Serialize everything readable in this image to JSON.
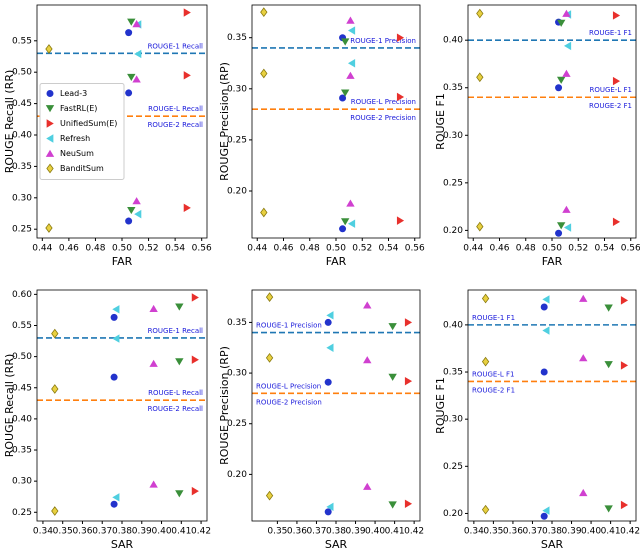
{
  "chart_data": [
    {
      "type": "scatter",
      "xlabel": "FAR",
      "ylabel": "ROUGE Recall (RR)",
      "xlim": [
        0.436,
        0.564
      ],
      "ylim": [
        0.236,
        0.607
      ],
      "xticks": [
        0.44,
        0.46,
        0.48,
        {
          "value": 0.5,
          "label": "0.50"
        },
        0.52,
        0.54,
        0.56
      ],
      "yticks": [
        0.25,
        {
          "value": 0.3,
          "label": "0.30"
        },
        0.35,
        {
          "value": 0.4,
          "label": "0.40"
        },
        0.45,
        {
          "value": 0.5,
          "label": "0.50"
        },
        0.55
      ],
      "legend": "center left",
      "ref_label_side": "right",
      "ref_lines": [
        {
          "value": 0.53,
          "color": "#1f77b4",
          "labels": [
            "ROUGE-1 Recall"
          ]
        },
        {
          "value": 0.43,
          "color": "#ff7f0e",
          "labels": [
            "ROUGE-L Recall",
            "ROUGE-2 Recall"
          ]
        }
      ],
      "series": [
        {
          "name": "Lead-3",
          "color": "#2233cc",
          "marker": "o",
          "x": [
            0.505,
            0.505,
            0.505
          ],
          "values": [
            0.563,
            0.467,
            0.263
          ]
        },
        {
          "name": "FastRL(E)",
          "color": "#3a8f3a",
          "marker": "v",
          "x": [
            0.507,
            0.507,
            0.507
          ],
          "values": [
            0.58,
            0.492,
            0.28
          ]
        },
        {
          "name": "UnifiedSum(E)",
          "color": "#e8302c",
          "marker": ">",
          "x": [
            0.549,
            0.549,
            0.549
          ],
          "values": [
            0.595,
            0.495,
            0.284
          ]
        },
        {
          "name": "Refresh",
          "color": "#4fcfe0",
          "marker": "<",
          "x": [
            0.512,
            0.512,
            0.512
          ],
          "values": [
            0.576,
            0.529,
            0.274
          ]
        },
        {
          "name": "NeuSum",
          "color": "#d040d0",
          "marker": "^",
          "x": [
            0.511,
            0.511,
            0.511
          ],
          "values": [
            0.577,
            0.489,
            0.295
          ]
        },
        {
          "name": "BanditSum",
          "color": "#e8d040",
          "marker": "D",
          "x": [
            0.445,
            0.445,
            0.445
          ],
          "values": [
            0.537,
            0.448,
            0.252
          ]
        }
      ]
    },
    {
      "type": "scatter",
      "xlabel": "FAR",
      "ylabel": "ROUGE Precision (RP)",
      "xlim": [
        0.436,
        0.564
      ],
      "ylim": [
        0.154,
        0.382
      ],
      "xticks": [
        0.44,
        0.46,
        0.48,
        {
          "value": 0.5,
          "label": "0.50"
        },
        0.52,
        0.54,
        0.56
      ],
      "yticks": [
        {
          "value": 0.2,
          "label": "0.20"
        },
        0.25,
        {
          "value": 0.3,
          "label": "0.30"
        },
        0.35
      ],
      "ref_label_side": "right",
      "ref_lines": [
        {
          "value": 0.34,
          "color": "#1f77b4",
          "labels": [
            "ROUGE-1 Precision"
          ]
        },
        {
          "value": 0.28,
          "color": "#ff7f0e",
          "labels": [
            "ROUGE-L Precision",
            "ROUGE-2 Precision"
          ]
        }
      ],
      "series": [
        {
          "color": "#2233cc",
          "marker": "o",
          "x": [
            0.505,
            0.505,
            0.505
          ],
          "values": [
            0.35,
            0.291,
            0.163
          ]
        },
        {
          "color": "#3a8f3a",
          "marker": "v",
          "x": [
            0.507,
            0.507,
            0.507
          ],
          "values": [
            0.346,
            0.296,
            0.17
          ]
        },
        {
          "color": "#e8302c",
          "marker": ">",
          "x": [
            0.549,
            0.549,
            0.549
          ],
          "values": [
            0.35,
            0.292,
            0.171
          ]
        },
        {
          "color": "#4fcfe0",
          "marker": "<",
          "x": [
            0.512,
            0.512,
            0.512
          ],
          "values": [
            0.357,
            0.325,
            0.168
          ]
        },
        {
          "color": "#d040d0",
          "marker": "^",
          "x": [
            0.511,
            0.511,
            0.511
          ],
          "values": [
            0.367,
            0.313,
            0.188
          ]
        },
        {
          "color": "#e8d040",
          "marker": "D",
          "x": [
            0.445,
            0.445,
            0.445
          ],
          "values": [
            0.375,
            0.315,
            0.179
          ]
        }
      ]
    },
    {
      "type": "scatter",
      "xlabel": "FAR",
      "ylabel": "ROUGE F1",
      "xlim": [
        0.436,
        0.564
      ],
      "ylim": [
        0.192,
        0.437
      ],
      "xticks": [
        0.44,
        0.46,
        0.48,
        {
          "value": 0.5,
          "label": "0.50"
        },
        0.52,
        0.54,
        0.56
      ],
      "yticks": [
        {
          "value": 0.2,
          "label": "0.20"
        },
        0.25,
        {
          "value": 0.3,
          "label": "0.30"
        },
        0.35,
        {
          "value": 0.4,
          "label": "0.40"
        }
      ],
      "ref_label_side": "right",
      "ref_lines": [
        {
          "value": 0.4,
          "color": "#1f77b4",
          "labels": [
            "ROUGE-1 F1"
          ]
        },
        {
          "value": 0.34,
          "color": "#ff7f0e",
          "labels": [
            "ROUGE-L F1",
            "ROUGE-2 F1"
          ]
        }
      ],
      "series": [
        {
          "color": "#2233cc",
          "marker": "o",
          "x": [
            0.505,
            0.505,
            0.505
          ],
          "values": [
            0.419,
            0.35,
            0.197
          ]
        },
        {
          "color": "#3a8f3a",
          "marker": "v",
          "x": [
            0.507,
            0.507,
            0.507
          ],
          "values": [
            0.418,
            0.358,
            0.205
          ]
        },
        {
          "color": "#e8302c",
          "marker": ">",
          "x": [
            0.549,
            0.549,
            0.549
          ],
          "values": [
            0.426,
            0.357,
            0.209
          ]
        },
        {
          "color": "#4fcfe0",
          "marker": "<",
          "x": [
            0.512,
            0.512,
            0.512
          ],
          "values": [
            0.427,
            0.394,
            0.203
          ]
        },
        {
          "color": "#d040d0",
          "marker": "^",
          "x": [
            0.511,
            0.511,
            0.511
          ],
          "values": [
            0.428,
            0.365,
            0.222
          ]
        },
        {
          "color": "#e8d040",
          "marker": "D",
          "x": [
            0.445,
            0.445,
            0.445
          ],
          "values": [
            0.428,
            0.361,
            0.204
          ]
        }
      ]
    },
    {
      "type": "scatter",
      "xlabel": "SAR",
      "ylabel": "ROUGE Recall (RR)",
      "xlim": [
        0.337,
        0.423
      ],
      "ylim": [
        0.236,
        0.607
      ],
      "xticks": [
        0.34,
        0.35,
        0.36,
        0.37,
        0.38,
        0.39,
        {
          "value": 0.4,
          "label": "0.40"
        },
        0.41,
        0.42
      ],
      "yticks": [
        0.25,
        {
          "value": 0.3,
          "label": "0.30"
        },
        0.35,
        {
          "value": 0.4,
          "label": "0.40"
        },
        0.45,
        {
          "value": 0.5,
          "label": "0.50"
        },
        0.55,
        {
          "value": 0.6,
          "label": "0.60"
        }
      ],
      "ref_label_side": "right",
      "ref_lines": [
        {
          "value": 0.53,
          "color": "#1f77b4",
          "labels": [
            "ROUGE-1 Recall"
          ]
        },
        {
          "value": 0.43,
          "color": "#ff7f0e",
          "labels": [
            "ROUGE-L Recall",
            "ROUGE-2 Recall"
          ]
        }
      ],
      "series": [
        {
          "color": "#2233cc",
          "marker": "o",
          "x": [
            0.376,
            0.376,
            0.376
          ],
          "values": [
            0.563,
            0.467,
            0.263
          ]
        },
        {
          "color": "#3a8f3a",
          "marker": "v",
          "x": [
            0.409,
            0.409,
            0.409
          ],
          "values": [
            0.58,
            0.492,
            0.28
          ]
        },
        {
          "color": "#e8302c",
          "marker": ">",
          "x": [
            0.417,
            0.417,
            0.417
          ],
          "values": [
            0.595,
            0.495,
            0.284
          ]
        },
        {
          "color": "#4fcfe0",
          "marker": "<",
          "x": [
            0.377,
            0.377,
            0.377
          ],
          "values": [
            0.576,
            0.529,
            0.274
          ]
        },
        {
          "color": "#d040d0",
          "marker": "^",
          "x": [
            0.396,
            0.396,
            0.396
          ],
          "values": [
            0.577,
            0.489,
            0.295
          ]
        },
        {
          "color": "#e8d040",
          "marker": "D",
          "x": [
            0.346,
            0.346,
            0.346
          ],
          "values": [
            0.537,
            0.448,
            0.252
          ]
        }
      ]
    },
    {
      "type": "scatter",
      "xlabel": "SAR",
      "ylabel": "ROUGE Precision (RP)",
      "xlim": [
        0.337,
        0.423
      ],
      "ylim": [
        0.154,
        0.382
      ],
      "xticks": [
        0.35,
        0.36,
        0.37,
        0.38,
        0.39,
        {
          "value": 0.4,
          "label": "0.40"
        },
        0.41,
        0.42
      ],
      "yticks": [
        {
          "value": 0.2,
          "label": "0.20"
        },
        0.25,
        {
          "value": 0.3,
          "label": "0.30"
        },
        0.35
      ],
      "ref_label_side": "left",
      "ref_lines": [
        {
          "value": 0.34,
          "color": "#1f77b4",
          "labels": [
            "ROUGE-1 Precision"
          ]
        },
        {
          "value": 0.28,
          "color": "#ff7f0e",
          "labels": [
            "ROUGE-L Precision",
            "ROUGE-2 Precision"
          ]
        }
      ],
      "series": [
        {
          "color": "#2233cc",
          "marker": "o",
          "x": [
            0.376,
            0.376,
            0.376
          ],
          "values": [
            0.35,
            0.291,
            0.163
          ]
        },
        {
          "color": "#3a8f3a",
          "marker": "v",
          "x": [
            0.409,
            0.409,
            0.409
          ],
          "values": [
            0.346,
            0.296,
            0.17
          ]
        },
        {
          "color": "#e8302c",
          "marker": ">",
          "x": [
            0.417,
            0.417,
            0.417
          ],
          "values": [
            0.35,
            0.292,
            0.171
          ]
        },
        {
          "color": "#4fcfe0",
          "marker": "<",
          "x": [
            0.377,
            0.377,
            0.377
          ],
          "values": [
            0.357,
            0.325,
            0.168
          ]
        },
        {
          "color": "#d040d0",
          "marker": "^",
          "x": [
            0.396,
            0.396,
            0.396
          ],
          "values": [
            0.367,
            0.313,
            0.188
          ]
        },
        {
          "color": "#e8d040",
          "marker": "D",
          "x": [
            0.346,
            0.346,
            0.346
          ],
          "values": [
            0.375,
            0.315,
            0.179
          ]
        }
      ]
    },
    {
      "type": "scatter",
      "xlabel": "SAR",
      "ylabel": "ROUGE F1",
      "xlim": [
        0.337,
        0.423
      ],
      "ylim": [
        0.192,
        0.437
      ],
      "xticks": [
        0.34,
        0.35,
        0.36,
        0.37,
        0.38,
        0.39,
        {
          "value": 0.4,
          "label": "0.40"
        },
        0.41,
        0.42
      ],
      "yticks": [
        {
          "value": 0.2,
          "label": "0.20"
        },
        0.25,
        {
          "value": 0.3,
          "label": "0.30"
        },
        0.35,
        {
          "value": 0.4,
          "label": "0.40"
        }
      ],
      "ref_label_side": "left",
      "ref_lines": [
        {
          "value": 0.4,
          "color": "#1f77b4",
          "labels": [
            "ROUGE-1 F1"
          ]
        },
        {
          "value": 0.34,
          "color": "#ff7f0e",
          "labels": [
            "ROUGE-L F1",
            "ROUGE-2 F1"
          ]
        }
      ],
      "series": [
        {
          "color": "#2233cc",
          "marker": "o",
          "x": [
            0.376,
            0.376,
            0.376
          ],
          "values": [
            0.419,
            0.35,
            0.197
          ]
        },
        {
          "color": "#3a8f3a",
          "marker": "v",
          "x": [
            0.409,
            0.409,
            0.409
          ],
          "values": [
            0.418,
            0.358,
            0.205
          ]
        },
        {
          "color": "#e8302c",
          "marker": ">",
          "x": [
            0.417,
            0.417,
            0.417
          ],
          "values": [
            0.426,
            0.357,
            0.209
          ]
        },
        {
          "color": "#4fcfe0",
          "marker": "<",
          "x": [
            0.377,
            0.377,
            0.377
          ],
          "values": [
            0.427,
            0.394,
            0.203
          ]
        },
        {
          "color": "#d040d0",
          "marker": "^",
          "x": [
            0.396,
            0.396,
            0.396
          ],
          "values": [
            0.428,
            0.365,
            0.222
          ]
        },
        {
          "color": "#e8d040",
          "marker": "D",
          "x": [
            0.346,
            0.346,
            0.346
          ],
          "values": [
            0.428,
            0.361,
            0.204
          ]
        }
      ]
    }
  ]
}
